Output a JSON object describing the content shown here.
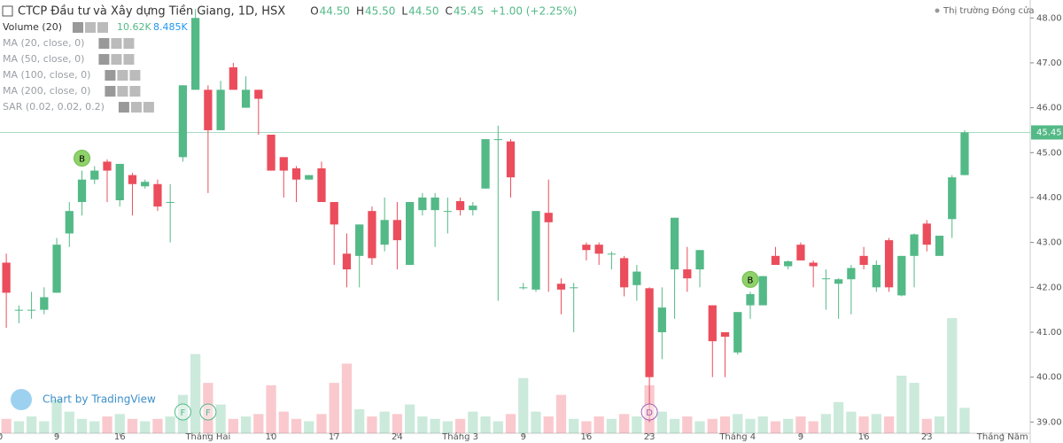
{
  "header": {
    "title": "CTCP Đầu tư và Xây dựng Tiền Giang, 1D, HSX",
    "ohlc": [
      {
        "key": "O",
        "value": "44.50"
      },
      {
        "key": "H",
        "value": "45.50"
      },
      {
        "key": "L",
        "value": "44.50"
      },
      {
        "key": "C",
        "value": "45.45"
      }
    ],
    "change": "+1.00 (+2.25%)",
    "market_status": "Thị trường Đóng cửa",
    "volume_label": "Volume (20)",
    "volume_value": "10.62K",
    "volume_ma": "8.485K",
    "indicators": [
      "MA (20, close, 0)",
      "MA (50, close, 0)",
      "MA (100, close, 0)",
      "MA (200, close, 0)",
      "SAR (0.02, 0.02, 0.2)"
    ],
    "watermark": "Chart by TradingView"
  },
  "chart_data": {
    "type": "candlestick",
    "up_color": "#53b987",
    "down_color": "#eb4d5c",
    "open": [
      42.55,
      41.5,
      41.5,
      41.5,
      41.88,
      43.2,
      43.9,
      44.4,
      44.8,
      43.94,
      44.5,
      44.25,
      44.3,
      43.9,
      44.9,
      46.4,
      46.4,
      45.5,
      46.9,
      46.0,
      46.4,
      45.4,
      44.9,
      44.65,
      44.4,
      44.65,
      43.9,
      42.75,
      42.7,
      43.7,
      42.95,
      43.5,
      42.5,
      43.72,
      43.72,
      43.7,
      43.92,
      43.72,
      44.2,
      45.3,
      45.25,
      42.0,
      41.95,
      43.66,
      42.08,
      42.0,
      42.95,
      42.95,
      42.75,
      42.65,
      42.05,
      41.98,
      41.0,
      42.4,
      42.4,
      42.4,
      41.6,
      41.0,
      40.55,
      41.6,
      41.6,
      42.7,
      42.47,
      42.95,
      42.55,
      42.2,
      42.08,
      42.18,
      42.7,
      42.0,
      43.05,
      41.82,
      42.7,
      43.42,
      42.7,
      43.52,
      44.5
    ],
    "high": [
      42.75,
      41.6,
      41.9,
      42.0,
      43.1,
      43.9,
      44.6,
      44.7,
      44.85,
      44.75,
      44.55,
      44.4,
      44.4,
      44.3,
      46.5,
      48.2,
      46.5,
      46.6,
      47.0,
      46.7,
      46.4,
      45.4,
      44.9,
      44.7,
      44.5,
      44.8,
      43.9,
      43.2,
      43.4,
      43.8,
      44.0,
      43.9,
      43.9,
      44.1,
      44.1,
      44.0,
      44.0,
      43.9,
      45.3,
      45.6,
      45.3,
      42.1,
      43.7,
      44.4,
      42.2,
      42.1,
      43.0,
      43.0,
      42.8,
      42.7,
      42.5,
      42.0,
      42.0,
      43.55,
      42.9,
      42.83,
      41.6,
      41.0,
      41.45,
      41.9,
      42.25,
      42.9,
      42.6,
      43.0,
      42.6,
      42.4,
      42.2,
      42.5,
      42.9,
      42.6,
      43.1,
      42.7,
      43.2,
      43.5,
      43.15,
      44.5,
      45.5
    ],
    "low": [
      41.1,
      41.2,
      41.3,
      41.4,
      41.88,
      42.9,
      43.6,
      44.3,
      43.9,
      43.8,
      43.6,
      44.2,
      43.7,
      43.0,
      44.8,
      46.4,
      44.1,
      45.5,
      46.4,
      46.0,
      45.4,
      44.6,
      44.0,
      43.9,
      44.4,
      43.9,
      42.5,
      42.0,
      42.0,
      42.5,
      42.8,
      42.4,
      42.5,
      43.6,
      42.9,
      43.2,
      43.6,
      43.6,
      44.2,
      41.7,
      44.0,
      41.95,
      41.9,
      41.9,
      41.4,
      41.0,
      42.6,
      42.5,
      42.4,
      41.8,
      41.7,
      39.0,
      40.4,
      41.3,
      41.9,
      42.0,
      40.0,
      40.0,
      40.5,
      41.3,
      41.6,
      42.5,
      42.4,
      42.6,
      42.0,
      41.5,
      41.3,
      41.4,
      42.4,
      41.9,
      41.9,
      41.8,
      42.0,
      42.8,
      42.7,
      43.1,
      44.5
    ],
    "close": [
      41.88,
      41.5,
      41.5,
      41.78,
      42.95,
      43.7,
      44.4,
      44.6,
      44.6,
      44.75,
      44.3,
      44.35,
      43.8,
      43.9,
      46.5,
      48.0,
      45.5,
      46.4,
      46.4,
      46.4,
      46.2,
      44.6,
      44.6,
      44.4,
      44.5,
      43.9,
      43.4,
      42.4,
      43.4,
      42.65,
      43.5,
      43.05,
      43.9,
      44.0,
      44.0,
      43.7,
      43.72,
      43.82,
      45.3,
      45.3,
      44.45,
      42.0,
      43.7,
      43.45,
      41.95,
      42.0,
      42.83,
      42.75,
      42.75,
      42.0,
      42.35,
      40.0,
      41.55,
      43.55,
      42.2,
      42.83,
      40.8,
      40.9,
      41.45,
      41.85,
      42.25,
      42.5,
      42.58,
      42.6,
      42.47,
      42.2,
      42.18,
      42.43,
      42.5,
      42.5,
      42.0,
      42.7,
      43.18,
      42.95,
      43.15,
      44.45,
      45.45
    ],
    "volume": [
      6,
      5,
      7,
      5,
      14,
      9,
      6,
      5,
      7,
      8,
      6,
      5,
      6,
      7,
      16,
      33,
      21,
      12,
      6,
      7,
      8,
      20,
      9,
      6,
      5,
      8,
      21,
      29,
      10,
      7,
      9,
      8,
      12,
      7,
      6,
      5,
      6,
      9,
      7,
      5,
      8,
      23,
      9,
      7,
      16,
      6,
      5,
      7,
      6,
      8,
      7,
      20,
      9,
      6,
      7,
      5,
      6,
      7,
      8,
      6,
      7,
      5,
      6,
      7,
      5,
      8,
      13,
      9,
      7,
      8,
      7,
      24,
      21,
      6,
      7,
      48,
      10.62
    ],
    "xlim": [
      -0.5,
      81.2
    ],
    "xticks": [
      {
        "value": -0.5,
        "label": "0"
      },
      {
        "value": 4,
        "label": "9"
      },
      {
        "value": 9,
        "label": "16"
      },
      {
        "value": 16,
        "label": "Tháng Hai"
      },
      {
        "value": 21,
        "label": "10"
      },
      {
        "value": 26,
        "label": "17"
      },
      {
        "value": 31,
        "label": "24"
      },
      {
        "value": 36,
        "label": "Tháng 3"
      },
      {
        "value": 41,
        "label": "9"
      },
      {
        "value": 46,
        "label": "16"
      },
      {
        "value": 51,
        "label": "23"
      },
      {
        "value": 58,
        "label": "Tháng 4"
      },
      {
        "value": 63,
        "label": "9"
      },
      {
        "value": 68,
        "label": "16"
      },
      {
        "value": 73,
        "label": "23"
      },
      {
        "value": 79,
        "label": "Tháng Năm"
      }
    ],
    "ylim": [
      38.75,
      48.4
    ],
    "yticks": [
      {
        "value": 39,
        "label": "39.00"
      },
      {
        "value": 40,
        "label": "40.00"
      },
      {
        "value": 41,
        "label": "41.00"
      },
      {
        "value": 42,
        "label": "42.00"
      },
      {
        "value": 43,
        "label": "43.00"
      },
      {
        "value": 44,
        "label": "44.00"
      },
      {
        "value": 45,
        "label": "45.00"
      },
      {
        "value": 46,
        "label": "46.00"
      },
      {
        "value": 47,
        "label": "47.00"
      },
      {
        "value": 48,
        "label": "48.00"
      }
    ],
    "last_price": {
      "value": 45.45,
      "label": "45.45"
    },
    "events": [
      {
        "index": 6,
        "label": "B"
      },
      {
        "index": 59,
        "label": "B"
      },
      {
        "index": 14,
        "label": "F"
      },
      {
        "index": 16,
        "label": "F"
      },
      {
        "index": 51,
        "label": "D"
      }
    ]
  }
}
